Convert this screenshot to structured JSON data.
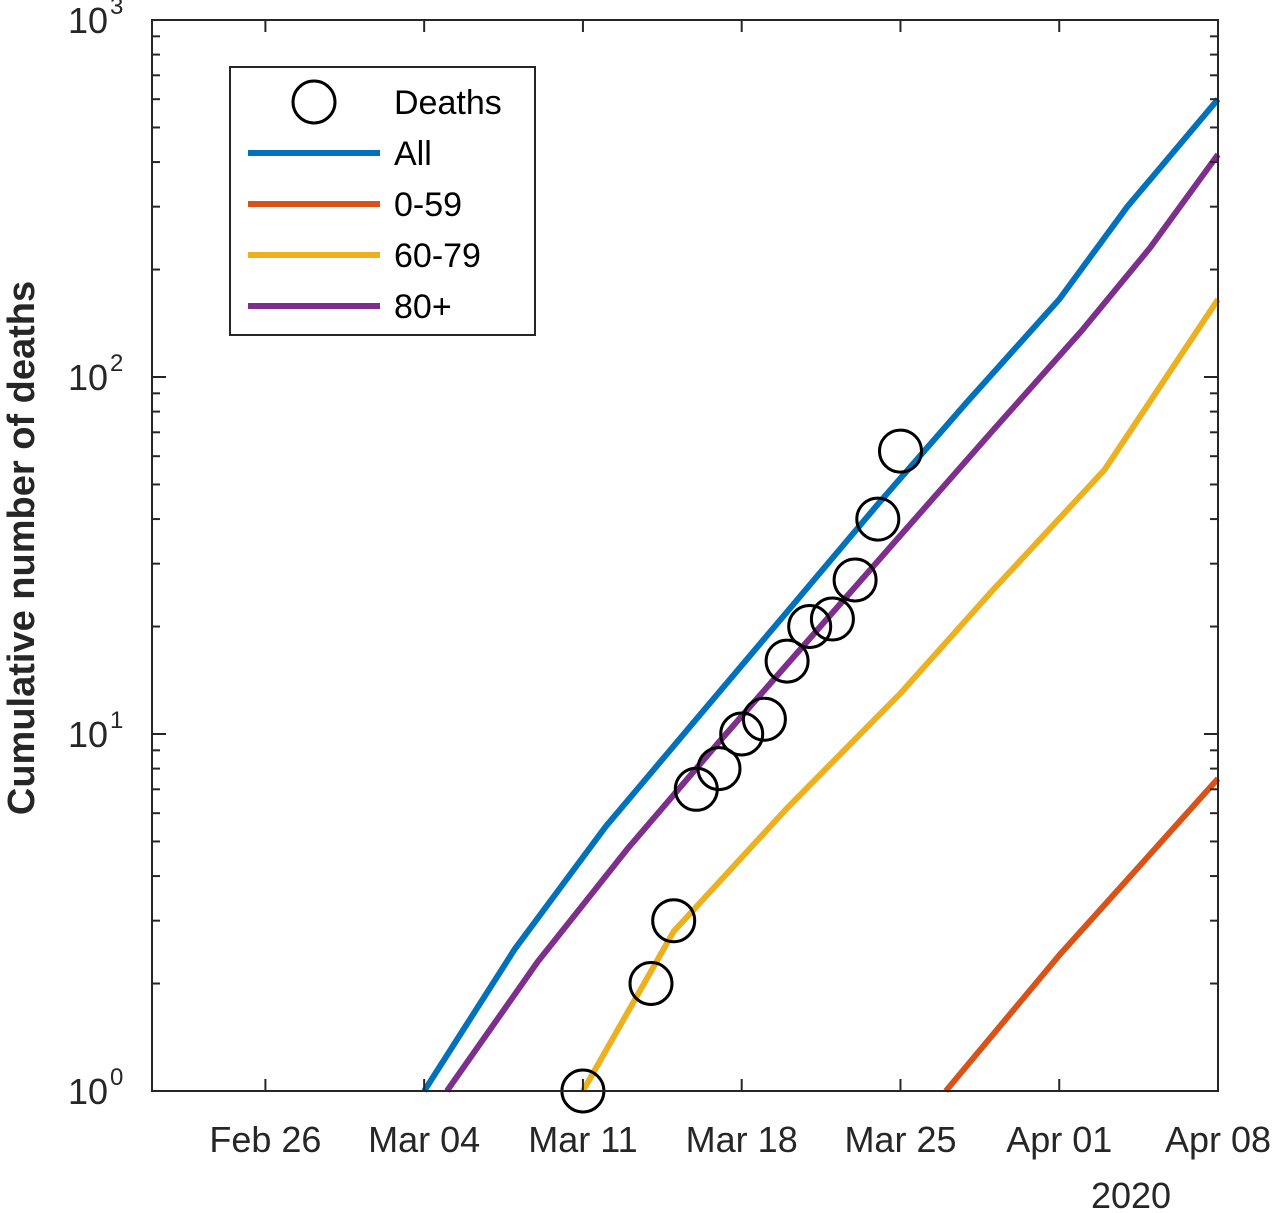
{
  "chart_data": {
    "type": "line",
    "title": "",
    "xlabel": "",
    "ylabel": "Cumulative number of deaths",
    "yscale": "log",
    "ylim": [
      1,
      1000
    ],
    "xlim": [
      "2020-02-21",
      "2020-04-08"
    ],
    "x_ticks": [
      {
        "date": "2020-02-26",
        "label": "Feb 26"
      },
      {
        "date": "2020-03-04",
        "label": "Mar 04"
      },
      {
        "date": "2020-03-11",
        "label": "Mar 11"
      },
      {
        "date": "2020-03-18",
        "label": "Mar 18"
      },
      {
        "date": "2020-03-25",
        "label": "Mar 25"
      },
      {
        "date": "2020-04-01",
        "label": "Apr 01"
      },
      {
        "date": "2020-04-08",
        "label": "Apr 08"
      }
    ],
    "x_secondary_label": "2020",
    "y_ticks": [
      {
        "value": 1,
        "base": "10",
        "exp": "0"
      },
      {
        "value": 10,
        "base": "10",
        "exp": "1"
      },
      {
        "value": 100,
        "base": "10",
        "exp": "2"
      },
      {
        "value": 1000,
        "base": "10",
        "exp": "3"
      }
    ],
    "grid": false,
    "legend": {
      "position": "top-left",
      "entries": [
        {
          "label": "Deaths",
          "marker": "circle"
        },
        {
          "label": "All",
          "color": "#0072BD"
        },
        {
          "label": "0-59",
          "color": "#D95319"
        },
        {
          "label": "60-79",
          "color": "#EDB120"
        },
        {
          "label": "80+",
          "color": "#7E2F8E"
        }
      ]
    },
    "series": [
      {
        "name": "Deaths",
        "kind": "scatter",
        "color": "#000000",
        "points": [
          {
            "x": "2020-03-11",
            "y": 1
          },
          {
            "x": "2020-03-14",
            "y": 2
          },
          {
            "x": "2020-03-15",
            "y": 3
          },
          {
            "x": "2020-03-16",
            "y": 7
          },
          {
            "x": "2020-03-17",
            "y": 8
          },
          {
            "x": "2020-03-18",
            "y": 10
          },
          {
            "x": "2020-03-19",
            "y": 11
          },
          {
            "x": "2020-03-20",
            "y": 16
          },
          {
            "x": "2020-03-21",
            "y": 20
          },
          {
            "x": "2020-03-22",
            "y": 21
          },
          {
            "x": "2020-03-23",
            "y": 27
          },
          {
            "x": "2020-03-24",
            "y": 40
          },
          {
            "x": "2020-03-25",
            "y": 62
          }
        ]
      },
      {
        "name": "All",
        "kind": "line",
        "color": "#0072BD",
        "points": [
          {
            "x": "2020-03-04",
            "y": 1
          },
          {
            "x": "2020-03-08",
            "y": 2.5
          },
          {
            "x": "2020-03-12",
            "y": 5.5
          },
          {
            "x": "2020-03-16",
            "y": 11
          },
          {
            "x": "2020-03-20",
            "y": 22
          },
          {
            "x": "2020-03-24",
            "y": 44
          },
          {
            "x": "2020-03-28",
            "y": 86
          },
          {
            "x": "2020-04-01",
            "y": 165
          },
          {
            "x": "2020-04-04",
            "y": 300
          },
          {
            "x": "2020-04-08",
            "y": 600
          }
        ]
      },
      {
        "name": "0-59",
        "kind": "line",
        "color": "#D95319",
        "points": [
          {
            "x": "2020-03-27",
            "y": 1
          },
          {
            "x": "2020-04-01",
            "y": 2.4
          },
          {
            "x": "2020-04-05",
            "y": 4.6
          },
          {
            "x": "2020-04-08",
            "y": 7.5
          }
        ]
      },
      {
        "name": "60-79",
        "kind": "line",
        "color": "#EDB120",
        "points": [
          {
            "x": "2020-03-11",
            "y": 1
          },
          {
            "x": "2020-03-15",
            "y": 2.8
          },
          {
            "x": "2020-03-20",
            "y": 6.2
          },
          {
            "x": "2020-03-25",
            "y": 13
          },
          {
            "x": "2020-03-29",
            "y": 25
          },
          {
            "x": "2020-04-03",
            "y": 55
          },
          {
            "x": "2020-04-08",
            "y": 165
          }
        ]
      },
      {
        "name": "80+",
        "kind": "line",
        "color": "#7E2F8E",
        "points": [
          {
            "x": "2020-03-05",
            "y": 1
          },
          {
            "x": "2020-03-09",
            "y": 2.3
          },
          {
            "x": "2020-03-13",
            "y": 4.8
          },
          {
            "x": "2020-03-17",
            "y": 9.5
          },
          {
            "x": "2020-03-21",
            "y": 18.5
          },
          {
            "x": "2020-03-25",
            "y": 36
          },
          {
            "x": "2020-03-29",
            "y": 70
          },
          {
            "x": "2020-04-02",
            "y": 135
          },
          {
            "x": "2020-04-05",
            "y": 230
          },
          {
            "x": "2020-04-08",
            "y": 420
          }
        ]
      }
    ]
  }
}
